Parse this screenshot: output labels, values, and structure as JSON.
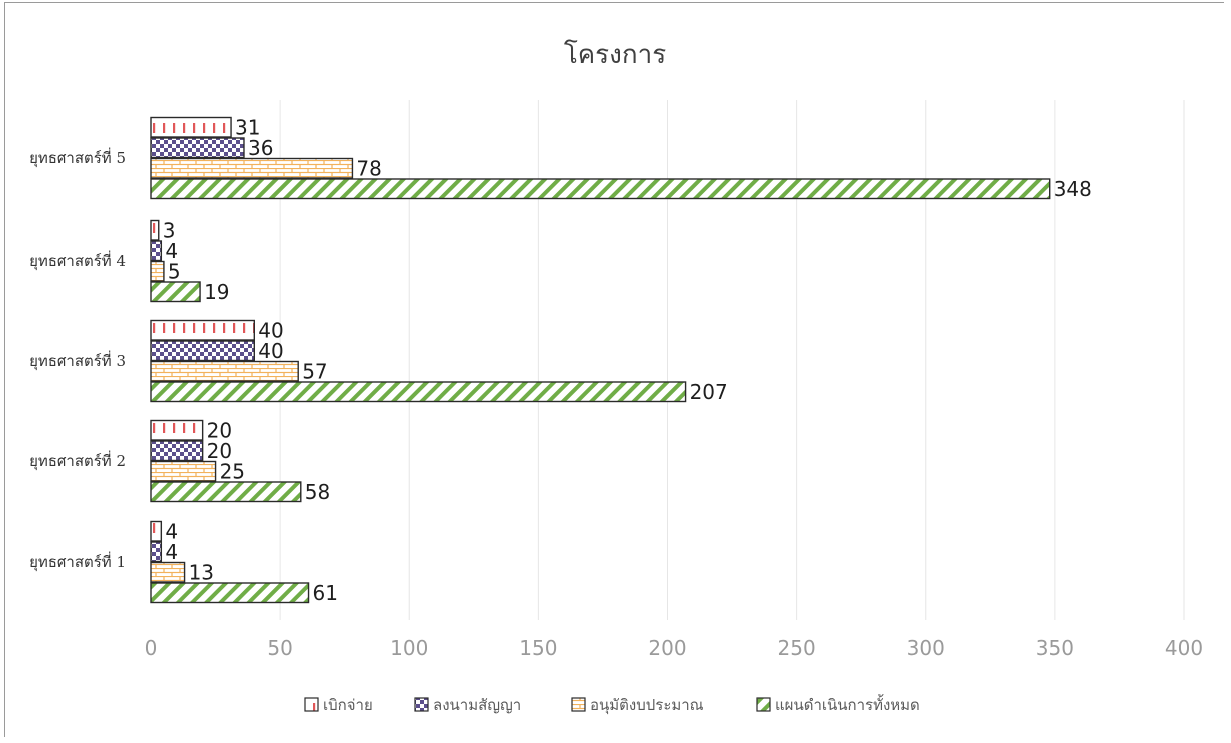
{
  "chart_data": {
    "type": "bar",
    "orientation": "horizontal",
    "title": "โครงการ",
    "categories": [
      "ยุทธศาสตร์ที่ 1",
      "ยุทธศาสตร์ที่ 2",
      "ยุทธศาสตร์ที่ 3",
      "ยุทธศาสตร์ที่ 4",
      "ยุทธศาสตร์ที่ 5"
    ],
    "series": [
      {
        "name": "เบิกจ่าย",
        "values": [
          4,
          20,
          40,
          3,
          31
        ],
        "color": "#e15759",
        "pattern": "red-dashes"
      },
      {
        "name": "ลงนามสัญญา",
        "values": [
          4,
          20,
          40,
          4,
          36
        ],
        "color": "#5b4f8c",
        "pattern": "purple-checker"
      },
      {
        "name": "อนุมัติงบประมาณ",
        "values": [
          13,
          25,
          57,
          5,
          78
        ],
        "color": "#f2b25c",
        "pattern": "orange-brick"
      },
      {
        "name": "แผนดำเนินการทั้งหมด",
        "values": [
          61,
          58,
          207,
          19,
          348
        ],
        "color": "#70ad47",
        "pattern": "green-diagonal"
      }
    ],
    "x_ticks": [
      "0",
      "50",
      "100",
      "150",
      "200",
      "250",
      "300",
      "350",
      "400"
    ],
    "xlim": [
      0,
      400
    ],
    "grid": true,
    "legend_position": "bottom"
  }
}
